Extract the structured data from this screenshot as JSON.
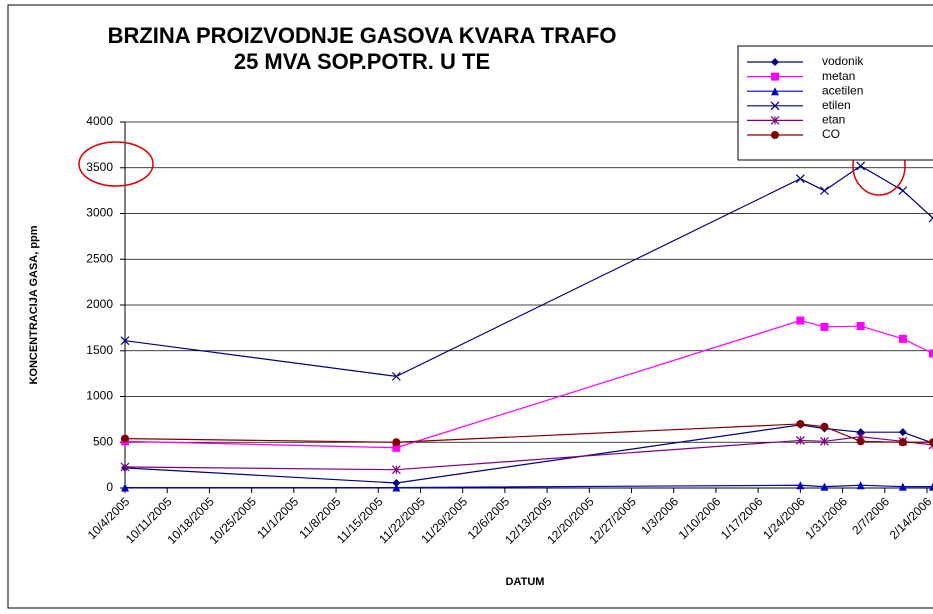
{
  "chart_data": {
    "type": "line",
    "title": [
      "BRZINA PROIZVODNJE GASOVA KVARA TRAFO",
      "25 MVA SOP.POTR. U TE"
    ],
    "x_label": "DATUM",
    "y_label": "KONCENTRACIJA GASA, ppm",
    "x": [
      "2005-10-04",
      "2005-11-18",
      "2006-01-24",
      "2006-01-28",
      "2006-02-03",
      "2006-02-10",
      "2006-02-15"
    ],
    "series": [
      {
        "name": "vodonik",
        "color": "#000080",
        "marker": "diamond",
        "values": [
          220,
          55,
          690,
          650,
          610,
          610,
          490
        ]
      },
      {
        "name": "metan",
        "color": "#ff00ff",
        "marker": "square",
        "values": [
          510,
          440,
          1830,
          1760,
          1770,
          1630,
          1470
        ]
      },
      {
        "name": "acetilen",
        "color": "#0000cc",
        "marker": "triangle",
        "values": [
          5,
          5,
          30,
          15,
          30,
          15,
          15
        ]
      },
      {
        "name": "etilen",
        "color": "#000080",
        "marker": "x",
        "values": [
          1610,
          1220,
          3380,
          3250,
          3520,
          3250,
          2950
        ]
      },
      {
        "name": "etan",
        "color": "#800080",
        "marker": "asterisk",
        "values": [
          230,
          200,
          520,
          510,
          560,
          510,
          470
        ]
      },
      {
        "name": "CO",
        "color": "#800000",
        "marker": "circle",
        "values": [
          540,
          500,
          700,
          670,
          510,
          500,
          500
        ]
      }
    ],
    "xlim": [
      "2005-10-04",
      "2006-02-15"
    ],
    "xticks": [
      {
        "value": "2005-10-04",
        "label": "10/4/2005"
      },
      {
        "value": "2005-10-11",
        "label": "10/11/2005"
      },
      {
        "value": "2005-10-18",
        "label": "10/18/2005"
      },
      {
        "value": "2005-10-25",
        "label": "10/25/2005"
      },
      {
        "value": "2005-11-01",
        "label": "11/1/2005"
      },
      {
        "value": "2005-11-08",
        "label": "11/8/2005"
      },
      {
        "value": "2005-11-15",
        "label": "11/15/2005"
      },
      {
        "value": "2005-11-22",
        "label": "11/22/2005"
      },
      {
        "value": "2005-11-29",
        "label": "11/29/2005"
      },
      {
        "value": "2005-12-06",
        "label": "12/6/2005"
      },
      {
        "value": "2005-12-13",
        "label": "12/13/2005"
      },
      {
        "value": "2005-12-20",
        "label": "12/20/2005"
      },
      {
        "value": "2005-12-27",
        "label": "12/27/2005"
      },
      {
        "value": "2006-01-03",
        "label": "1/3/2006"
      },
      {
        "value": "2006-01-10",
        "label": "1/10/2006"
      },
      {
        "value": "2006-01-17",
        "label": "1/17/2006"
      },
      {
        "value": "2006-01-24",
        "label": "1/24/2006"
      },
      {
        "value": "2006-01-31",
        "label": "1/31/2006"
      },
      {
        "value": "2006-02-07",
        "label": "2/7/2006"
      },
      {
        "value": "2006-02-14",
        "label": "2/14/2006"
      }
    ],
    "ylim": [
      0,
      4000
    ],
    "yticks": [
      0,
      500,
      1000,
      1500,
      2000,
      2500,
      3000,
      3500,
      4000
    ],
    "grid": true,
    "legend": "top-right"
  }
}
